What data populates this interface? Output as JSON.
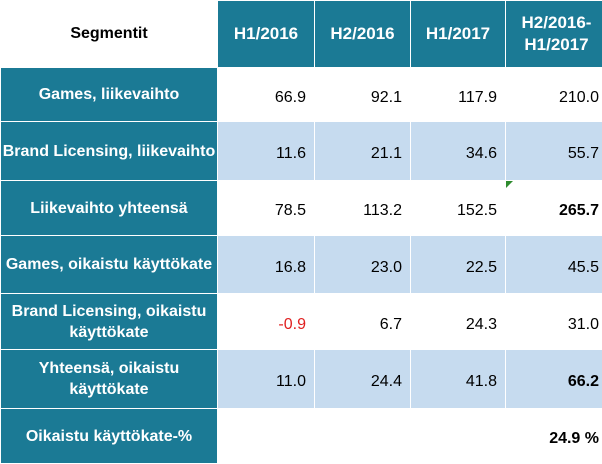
{
  "table": {
    "header": {
      "label": "Segmentit",
      "columns": [
        "H1/2016",
        "H2/2016",
        "H1/2017",
        "H2/2016-\nH1/2017"
      ]
    },
    "rows": [
      {
        "label": "Games, liikevaihto",
        "values": [
          "66.9",
          "92.1",
          "117.9",
          "210.0"
        ]
      },
      {
        "label": "Brand Licensing, liikevaihto",
        "values": [
          "11.6",
          "21.1",
          "34.6",
          "55.7"
        ]
      },
      {
        "label": "Liikevaihto yhteensä",
        "values": [
          "78.5",
          "113.2",
          "152.5",
          "265.7"
        ]
      },
      {
        "label": "Games, oikaistu käyttökate",
        "values": [
          "16.8",
          "23.0",
          "22.5",
          "45.5"
        ]
      },
      {
        "label": "Brand Licensing, oikaistu käyttökate",
        "values": [
          "-0.9",
          "6.7",
          "24.3",
          "31.0"
        ]
      },
      {
        "label": "Yhteensä, oikaistu käyttökate",
        "values": [
          "11.0",
          "24.4",
          "41.8",
          "66.2"
        ]
      },
      {
        "label": "Oikaistu käyttökate-%",
        "values": [
          "",
          "",
          "",
          "24.9 %"
        ]
      }
    ]
  },
  "colors": {
    "header_bg": "#1b7a95",
    "row_alt_bg": "#c6dbef",
    "negative": "#e02020"
  }
}
